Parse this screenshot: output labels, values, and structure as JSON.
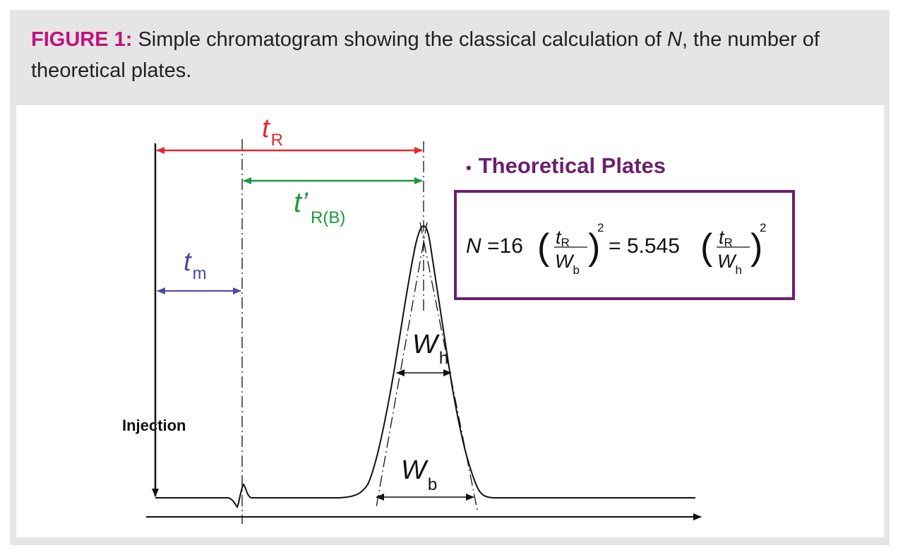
{
  "caption": {
    "label": "FIGURE 1:",
    "text_pre": " Simple chromatogram showing the classical calculation of ",
    "n_symbol": "N",
    "text_post": ", the number of theoretical plates."
  },
  "diagram": {
    "injection_label": "Injection",
    "tR": {
      "symbol": "t",
      "subscript": "R",
      "color": "#e8262b"
    },
    "tRB": {
      "symbol": "t’",
      "subscript": "R(B)",
      "color": "#1a9a3a"
    },
    "tm": {
      "symbol": "t",
      "subscript": "m",
      "color": "#4b4a9b"
    },
    "Wh": {
      "symbol": "W",
      "subscript": "h"
    },
    "Wb": {
      "symbol": "W",
      "subscript": "b"
    },
    "bullet": "•",
    "heading": "Theoretical Plates",
    "heading_color": "#6b1f6e",
    "formula": {
      "lhs": "N =16",
      "frac1_num": "t",
      "frac1_num_sub": "R",
      "frac1_den": "W",
      "frac1_den_sub": "b",
      "exp1": "2",
      "middle": "= 5.545",
      "frac2_num": "t",
      "frac2_num_sub": "R",
      "frac2_den": "W",
      "frac2_den_sub": "h",
      "exp2": "2",
      "open_paren": "(",
      "close_paren": ")"
    }
  }
}
